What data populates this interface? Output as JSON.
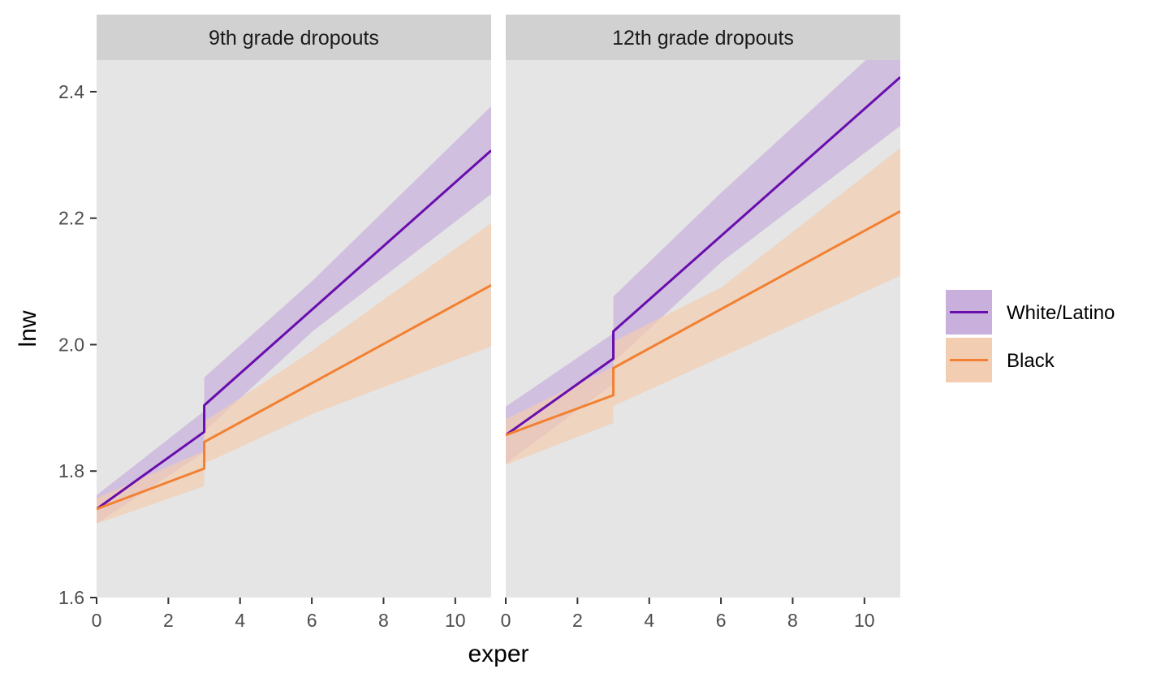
{
  "chart_data": {
    "type": "line",
    "xlabel": "exper",
    "ylabel": "lnw",
    "xlim": [
      0,
      11
    ],
    "ylim": [
      1.6,
      2.45
    ],
    "x_ticks": [
      0,
      2,
      4,
      6,
      8,
      10
    ],
    "y_ticks": [
      1.6,
      1.8,
      2.0,
      2.2,
      2.4
    ],
    "x_tick_labels": [
      "0",
      "2",
      "4",
      "6",
      "8",
      "10"
    ],
    "y_tick_labels": [
      "1.6",
      "1.8",
      "2.0",
      "2.2",
      "2.4"
    ],
    "grid": false,
    "legend_position": "right",
    "legend": [
      {
        "label": "White/Latino",
        "line_color": "#6a0dad",
        "fill_color": "#c9b0dc"
      },
      {
        "label": "Black",
        "line_color": "#f28032",
        "fill_color": "#f2cdb2"
      }
    ],
    "panels": [
      {
        "title": "9th grade dropouts",
        "series": [
          {
            "name": "White/Latino",
            "line": [
              [
                0,
                1.74
              ],
              [
                3,
                1.862
              ],
              [
                3,
                1.904
              ],
              [
                11,
                2.307
              ]
            ],
            "upper": [
              [
                0,
                1.762
              ],
              [
                3,
                1.895
              ],
              [
                3,
                1.948
              ],
              [
                6,
                2.1
              ],
              [
                11,
                2.377
              ]
            ],
            "lower": [
              [
                0,
                1.717
              ],
              [
                3,
                1.83
              ],
              [
                3,
                1.862
              ],
              [
                6,
                2.02
              ],
              [
                11,
                2.238
              ]
            ]
          },
          {
            "name": "Black",
            "line": [
              [
                0,
                1.74
              ],
              [
                3,
                1.804
              ],
              [
                3,
                1.846
              ],
              [
                11,
                2.094
              ]
            ],
            "upper": [
              [
                0,
                1.757
              ],
              [
                3,
                1.832
              ],
              [
                3,
                1.878
              ],
              [
                6,
                1.99
              ],
              [
                11,
                2.192
              ]
            ],
            "lower": [
              [
                0,
                1.717
              ],
              [
                3,
                1.776
              ],
              [
                3,
                1.812
              ],
              [
                6,
                1.89
              ],
              [
                11,
                1.997
              ]
            ]
          }
        ]
      },
      {
        "title": "12th grade dropouts",
        "series": [
          {
            "name": "White/Latino",
            "line": [
              [
                0,
                1.857
              ],
              [
                3,
                1.978
              ],
              [
                3,
                2.021
              ],
              [
                11,
                2.423
              ]
            ],
            "upper": [
              [
                0,
                1.902
              ],
              [
                3,
                2.018
              ],
              [
                3,
                2.076
              ],
              [
                6,
                2.24
              ],
              [
                11,
                2.5
              ]
            ],
            "lower": [
              [
                0,
                1.812
              ],
              [
                3,
                1.938
              ],
              [
                3,
                1.972
              ],
              [
                6,
                2.13
              ],
              [
                11,
                2.346
              ]
            ]
          },
          {
            "name": "Black",
            "line": [
              [
                0,
                1.857
              ],
              [
                3,
                1.92
              ],
              [
                3,
                1.963
              ],
              [
                11,
                2.211
              ]
            ],
            "upper": [
              [
                0,
                1.882
              ],
              [
                3,
                1.965
              ],
              [
                3,
                2.005
              ],
              [
                6,
                2.09
              ],
              [
                11,
                2.311
              ]
            ],
            "lower": [
              [
                0,
                1.81
              ],
              [
                3,
                1.876
              ],
              [
                3,
                1.903
              ],
              [
                6,
                1.98
              ],
              [
                11,
                2.109
              ]
            ]
          }
        ]
      }
    ]
  }
}
